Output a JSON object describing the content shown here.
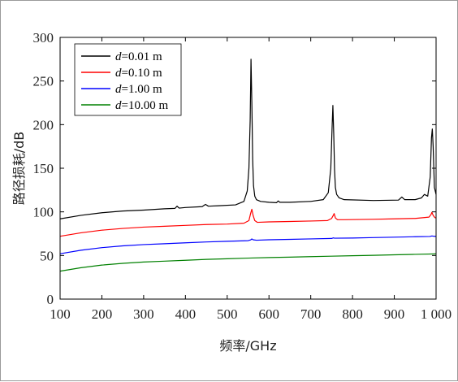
{
  "chart_data": {
    "type": "line",
    "xlabel": "频率/GHz",
    "ylabel": "路径损耗/dB",
    "xlim": [
      100,
      1000
    ],
    "ylim": [
      0,
      300
    ],
    "xticks": [
      100,
      200,
      300,
      400,
      500,
      600,
      700,
      800,
      900,
      1000
    ],
    "xtick_labels": [
      "100",
      "200",
      "300",
      "400",
      "500",
      "600",
      "700",
      "800",
      "900",
      "1 000"
    ],
    "yticks": [
      0,
      50,
      100,
      150,
      200,
      250,
      300
    ],
    "ytick_labels": [
      "0",
      "50",
      "100",
      "150",
      "200",
      "250",
      "300"
    ],
    "grid": false,
    "legend_position": "top-left",
    "series": [
      {
        "name": "d=0.01 m",
        "legend_var": "d",
        "legend_rest": "=0.01 m",
        "color": "#000000",
        "x": [
          100,
          150,
          200,
          250,
          300,
          350,
          375,
          380,
          385,
          400,
          440,
          448,
          455,
          480,
          520,
          540,
          548,
          552,
          555,
          557,
          559,
          561,
          563,
          566,
          570,
          580,
          600,
          618,
          622,
          626,
          650,
          700,
          730,
          742,
          748,
          751,
          753,
          755,
          757,
          759,
          762,
          768,
          780,
          850,
          910,
          918,
          925,
          950,
          965,
          972,
          980,
          986,
          989,
          991,
          993,
          996,
          1000
        ],
        "y": [
          92,
          96,
          99,
          101,
          102,
          103.5,
          104,
          106.5,
          104.3,
          105,
          106,
          108.5,
          106.5,
          107,
          108,
          112,
          124,
          150,
          205,
          275,
          225,
          160,
          130,
          118,
          114,
          112,
          111,
          110.5,
          112.5,
          111,
          111,
          112,
          114,
          122,
          150,
          195,
          222,
          190,
          148,
          128,
          120,
          116,
          114,
          113,
          113.5,
          117,
          114,
          114,
          116,
          120,
          118,
          140,
          185,
          195,
          175,
          128,
          120
        ]
      },
      {
        "name": "d=0.10 m",
        "legend_var": "d",
        "legend_rest": "=0.10 m",
        "color": "#ff0000",
        "x": [
          100,
          150,
          200,
          250,
          300,
          350,
          400,
          450,
          500,
          540,
          552,
          556,
          559,
          562,
          566,
          572,
          600,
          650,
          700,
          740,
          750,
          754,
          756,
          759,
          764,
          780,
          850,
          900,
          950,
          983,
          988,
          990,
          993,
          997,
          1000
        ],
        "y": [
          72,
          76,
          79,
          81,
          82.5,
          83.5,
          84.5,
          85.5,
          86,
          87,
          90,
          98,
          103,
          96,
          90,
          88,
          88.5,
          89,
          89.5,
          90,
          92.5,
          96,
          98,
          93,
          91,
          91,
          91.5,
          92,
          92.5,
          94,
          97,
          99.5,
          96,
          93.5,
          93
        ]
      },
      {
        "name": "d=1.00 m",
        "legend_var": "d",
        "legend_rest": "=1.00 m",
        "color": "#0000ff",
        "x": [
          100,
          150,
          200,
          250,
          300,
          350,
          400,
          450,
          500,
          550,
          556,
          559,
          562,
          570,
          600,
          650,
          700,
          750,
          754,
          757,
          800,
          850,
          900,
          950,
          985,
          990,
          995,
          1000
        ],
        "y": [
          52,
          56,
          59,
          61,
          62.5,
          63.5,
          64.5,
          65.5,
          66.3,
          67,
          67.8,
          69,
          68,
          67.5,
          68,
          68.5,
          69,
          69.5,
          70.2,
          69.8,
          70,
          70.5,
          71,
          71.5,
          71.8,
          72.4,
          72,
          72
        ]
      },
      {
        "name": "d=10.00 m",
        "legend_var": "d",
        "legend_rest": "=10.00 m",
        "color": "#008000",
        "x": [
          100,
          150,
          200,
          250,
          300,
          350,
          400,
          450,
          500,
          550,
          600,
          650,
          700,
          750,
          800,
          850,
          900,
          950,
          1000
        ],
        "y": [
          32,
          36,
          39,
          41,
          42.5,
          43.5,
          44.5,
          45.5,
          46.2,
          47,
          47.6,
          48.1,
          48.7,
          49.2,
          49.7,
          50.2,
          50.8,
          51.3,
          51.8
        ]
      }
    ]
  }
}
